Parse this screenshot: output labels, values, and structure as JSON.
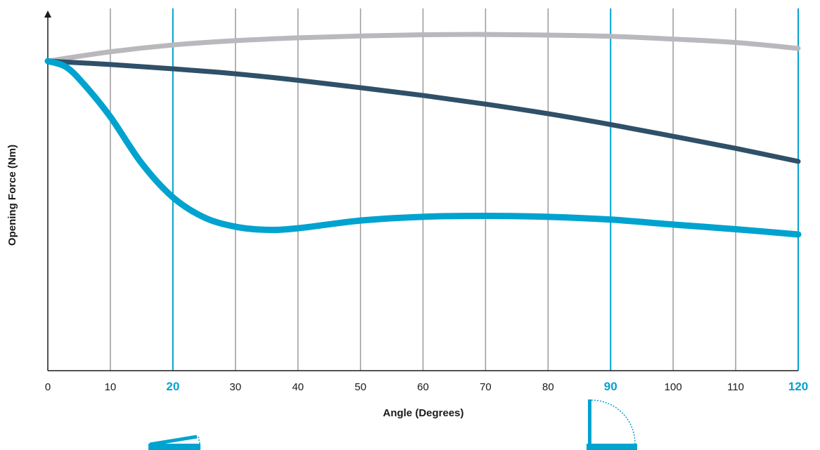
{
  "chart_data": {
    "type": "line",
    "xlabel": "Angle (Degrees)",
    "ylabel": "Opening Force (Nm)",
    "xlim": [
      0,
      120
    ],
    "ylim": [
      0,
      100
    ],
    "x_ticks": [
      0,
      10,
      20,
      30,
      40,
      50,
      60,
      70,
      80,
      90,
      100,
      110,
      120
    ],
    "highlighted_ticks": [
      20,
      90,
      120
    ],
    "grid": "vertical",
    "y_tick_labels_shown": false,
    "series": [
      {
        "color": "#b9b9bd",
        "x": [
          0,
          10,
          20,
          30,
          40,
          50,
          60,
          70,
          80,
          90,
          100,
          110,
          120
        ],
        "y": [
          100,
          103,
          105.2,
          106.6,
          107.5,
          108.1,
          108.5,
          108.6,
          108.4,
          108,
          107.1,
          106,
          104.1
        ]
      },
      {
        "color": "#2f5068",
        "x": [
          0,
          10,
          20,
          30,
          40,
          50,
          60,
          70,
          80,
          90,
          100,
          110,
          120
        ],
        "y": [
          100,
          98.9,
          97.5,
          95.9,
          93.8,
          91.4,
          88.9,
          86.1,
          83,
          79.5,
          75.7,
          71.8,
          67.6
        ]
      },
      {
        "color": "#00a3cf",
        "x": [
          0,
          3,
          6,
          10,
          15,
          20,
          25,
          30,
          35,
          40,
          50,
          60,
          70,
          80,
          90,
          100,
          110,
          120
        ],
        "y": [
          100,
          98,
          92,
          82,
          67,
          56,
          49.5,
          46.5,
          45.5,
          46,
          48.5,
          49.7,
          50,
          49.7,
          48.8,
          47.2,
          45.7,
          44
        ]
      }
    ]
  },
  "colors": {
    "grid": "#9a9a9a",
    "highlight": "#00a3cf",
    "axis": "#1a1a1a"
  }
}
